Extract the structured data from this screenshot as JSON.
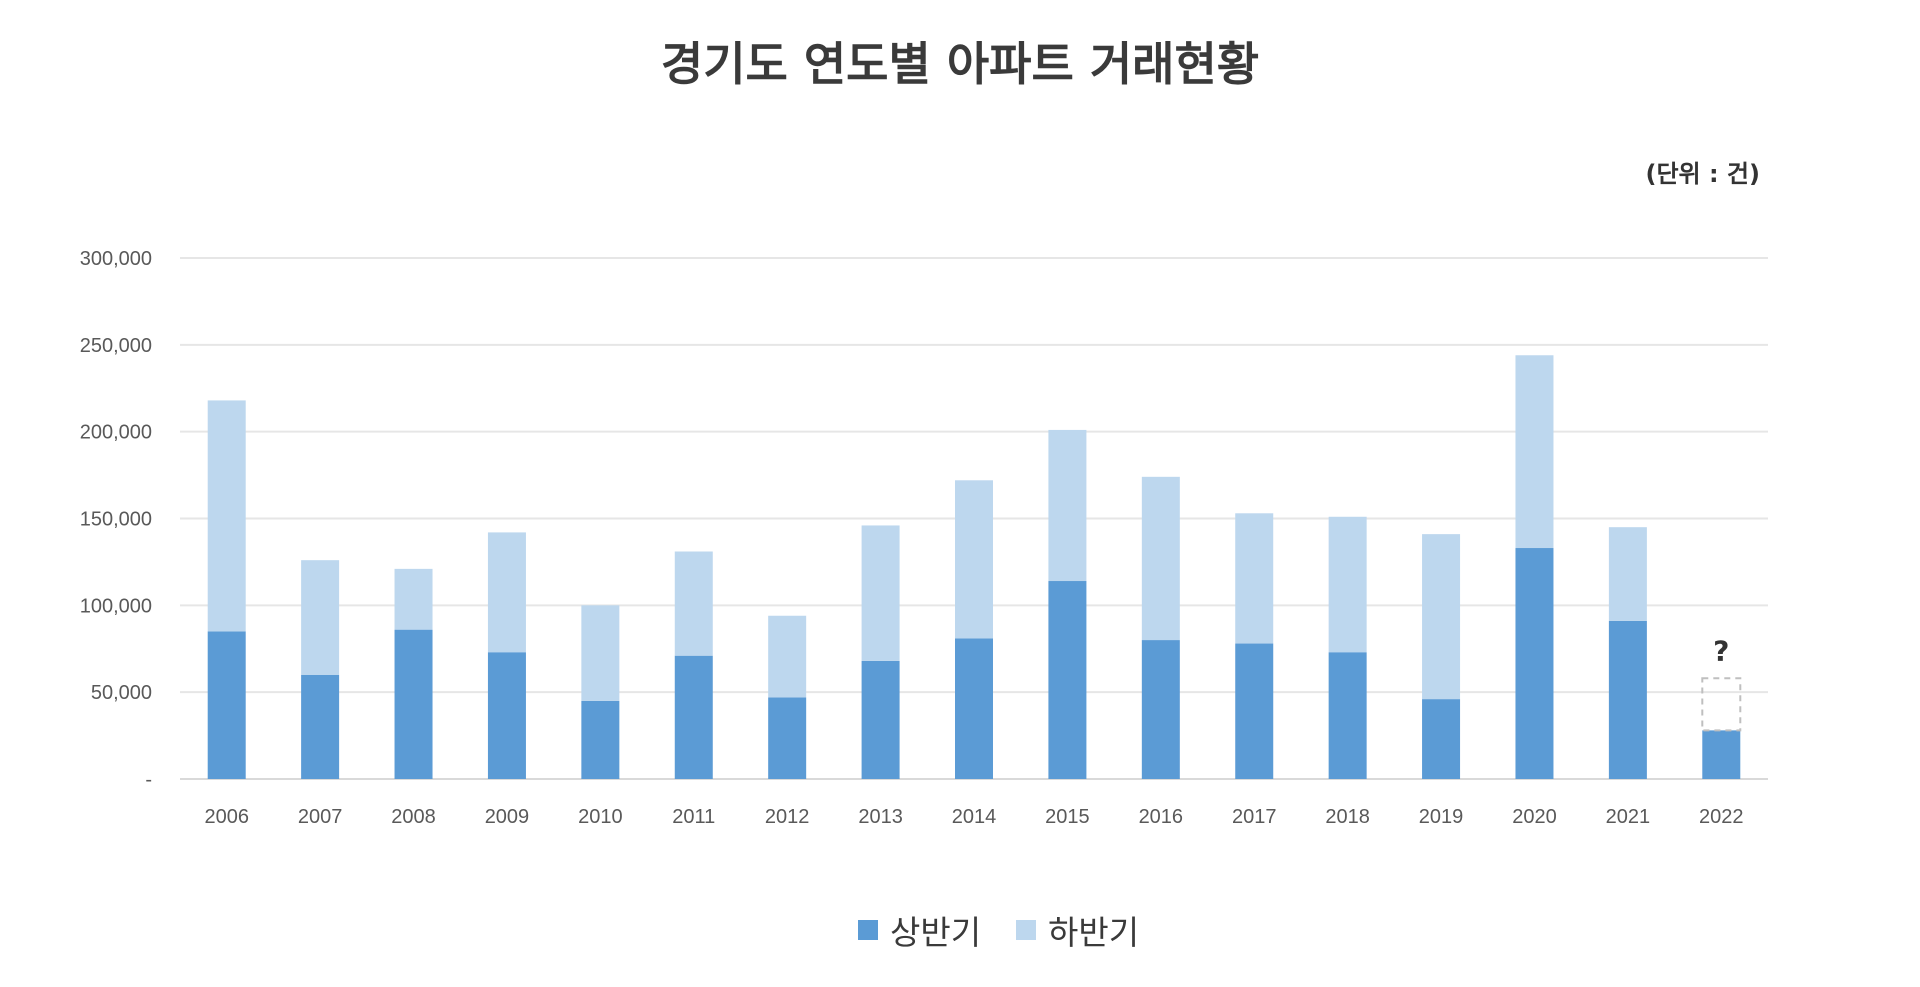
{
  "chart_data": {
    "type": "bar",
    "stacked": true,
    "title": "경기도 연도별 아파트 거래현황",
    "unit_note": "(단위 : 건)",
    "xlabel": "",
    "ylabel": "",
    "ylim": [
      0,
      300000
    ],
    "y_ticks": [
      0,
      50000,
      100000,
      150000,
      200000,
      250000,
      300000
    ],
    "y_tick_labels": [
      "-",
      "50,000",
      "100,000",
      "150,000",
      "200,000",
      "250,000",
      "300,000"
    ],
    "grid": true,
    "legend_position": "bottom",
    "categories": [
      "2006",
      "2007",
      "2008",
      "2009",
      "2010",
      "2011",
      "2012",
      "2013",
      "2014",
      "2015",
      "2016",
      "2017",
      "2018",
      "2019",
      "2020",
      "2021",
      "2022"
    ],
    "series": [
      {
        "name": "상반기",
        "color": "#5b9bd5",
        "values": [
          85000,
          60000,
          86000,
          73000,
          45000,
          71000,
          47000,
          68000,
          81000,
          114000,
          80000,
          78000,
          73000,
          46000,
          133000,
          91000,
          28000
        ]
      },
      {
        "name": "하반기",
        "color": "#bdd7ee",
        "values": [
          133000,
          66000,
          35000,
          69000,
          55000,
          60000,
          47000,
          78000,
          91000,
          87000,
          94000,
          75000,
          78000,
          95000,
          111000,
          54000,
          null
        ]
      }
    ],
    "annotations": [
      {
        "category": "2022",
        "text": "?",
        "style": "dashed-placeholder-bar",
        "value": 30000
      }
    ]
  },
  "colors": {
    "first_half": "#5b9bd5",
    "second_half": "#bdd7ee",
    "grid": "#e6e6e6",
    "placeholder_border": "#bfbfbf"
  }
}
